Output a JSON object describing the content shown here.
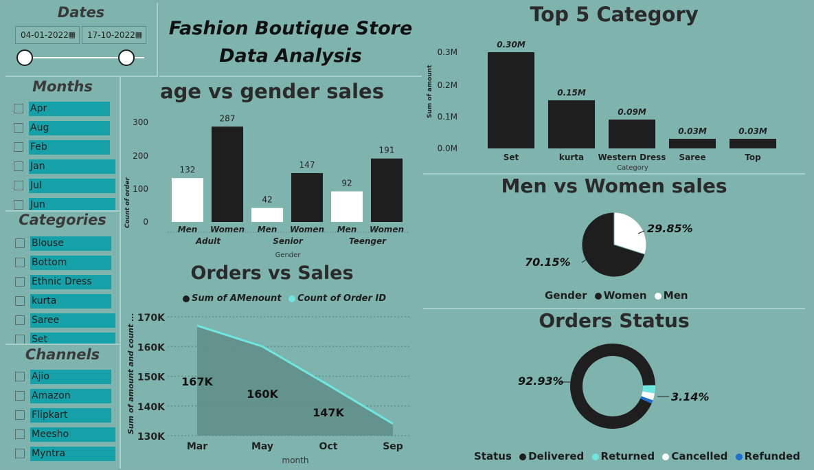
{
  "dates": {
    "title": "Dates",
    "start": "04-01-2022",
    "end": "17-10-2022",
    "calendar_icon": "calendar-icon"
  },
  "header": {
    "line1": "Fashion Boutique Store",
    "line2": "Data Analysis"
  },
  "months": {
    "title": "Months",
    "items": [
      "Apr",
      "Aug",
      "Feb",
      "Jan",
      "Jul",
      "Jun"
    ]
  },
  "categories": {
    "title": "Categories",
    "items": [
      "Blouse",
      "Bottom",
      "Ethnic Dress",
      "kurta",
      "Saree",
      "Set"
    ]
  },
  "channels": {
    "title": "Channels",
    "items": [
      "Ajio",
      "Amazon",
      "Flipkart",
      "Meesho",
      "Myntra"
    ]
  },
  "colors": {
    "bg": "#7fb2ac",
    "dark": "#1e1e1e",
    "men": "#ffffff",
    "cyan": "#6fe6e0",
    "refunded": "#1f6fd0",
    "slicer_bar": "#16a0a8"
  },
  "charts": {
    "age_gender": {
      "title": "age vs gender sales",
      "ylabel": "Count of order",
      "xlabel": "Gender",
      "yticks": [
        "300",
        "200",
        "100",
        "0"
      ],
      "groups": [
        "Adult",
        "Senior",
        "Teenger"
      ],
      "bars": [
        {
          "label": "Men",
          "value": "132"
        },
        {
          "label": "Women",
          "value": "287"
        },
        {
          "label": "Men",
          "value": "42"
        },
        {
          "label": "Women",
          "value": "147"
        },
        {
          "label": "Men",
          "value": "92"
        },
        {
          "label": "Women",
          "value": "191"
        }
      ]
    },
    "orders_sales": {
      "title": "Orders vs Sales",
      "legend1": "Sum of AMenount",
      "legend2": "Count of Order ID",
      "ylabel": "Sum of amount and count ...",
      "xlabel": "month",
      "yticks": [
        "170K",
        "160K",
        "150K",
        "140K",
        "130K"
      ],
      "months": [
        "Mar",
        "May",
        "Oct",
        "Sep"
      ],
      "labels": [
        "167K",
        "160K",
        "147K"
      ]
    },
    "top5": {
      "title": "Top 5 Category",
      "ylabel": "Sum of amount",
      "xlabel": "Category",
      "yticks": [
        "0.3M",
        "0.2M",
        "0.1M",
        "0.0M"
      ],
      "bars": [
        {
          "label": "Set",
          "value": "0.30M"
        },
        {
          "label": "kurta",
          "value": "0.15M"
        },
        {
          "label": "Western Dress",
          "value": "0.09M"
        },
        {
          "label": "Saree",
          "value": "0.03M"
        },
        {
          "label": "Top",
          "value": "0.03M"
        }
      ]
    },
    "gender_pie": {
      "title": "Men vs Women sales",
      "women_pct": "70.15%",
      "men_pct": "29.85%",
      "legend_title": "Gender",
      "legend_women": "Women",
      "legend_men": "Men"
    },
    "status": {
      "title": "Orders Status",
      "delivered_pct": "92.93%",
      "returned_pct": "3.14%",
      "legend_title": "Status",
      "items": [
        "Delivered",
        "Returned",
        "Cancelled",
        "Refunded"
      ]
    }
  },
  "chart_data": [
    {
      "type": "bar",
      "title": "age vs gender sales",
      "xlabel": "Gender",
      "ylabel": "Count of order",
      "categories": [
        "Adult",
        "Senior",
        "Teenger"
      ],
      "series": [
        {
          "name": "Men",
          "values": [
            132,
            42,
            92
          ]
        },
        {
          "name": "Women",
          "values": [
            287,
            147,
            191
          ]
        }
      ],
      "ylim": [
        0,
        300
      ]
    },
    {
      "type": "area",
      "title": "Orders vs Sales",
      "xlabel": "month",
      "ylabel": "Sum of amount and count ...",
      "x": [
        "Mar",
        "May",
        "Oct",
        "Sep"
      ],
      "series": [
        {
          "name": "Sum of AMenount",
          "values": [
            167000,
            160000,
            147000,
            134000
          ]
        },
        {
          "name": "Count of Order ID",
          "values": [
            167000,
            160000,
            147000,
            134000
          ]
        }
      ],
      "ylim": [
        130000,
        170000
      ]
    },
    {
      "type": "bar",
      "title": "Top 5 Category",
      "xlabel": "Category",
      "ylabel": "Sum of amount",
      "categories": [
        "Set",
        "kurta",
        "Western Dress",
        "Saree",
        "Top"
      ],
      "values": [
        0.3,
        0.15,
        0.09,
        0.03,
        0.03
      ],
      "ylim": [
        0,
        0.3
      ]
    },
    {
      "type": "pie",
      "title": "Men vs Women sales",
      "categories": [
        "Women",
        "Men"
      ],
      "values": [
        70.15,
        29.85
      ]
    },
    {
      "type": "pie",
      "title": "Orders Status",
      "categories": [
        "Delivered",
        "Returned",
        "Cancelled",
        "Refunded"
      ],
      "values": [
        92.93,
        3.14,
        2.6,
        1.33
      ]
    }
  ]
}
